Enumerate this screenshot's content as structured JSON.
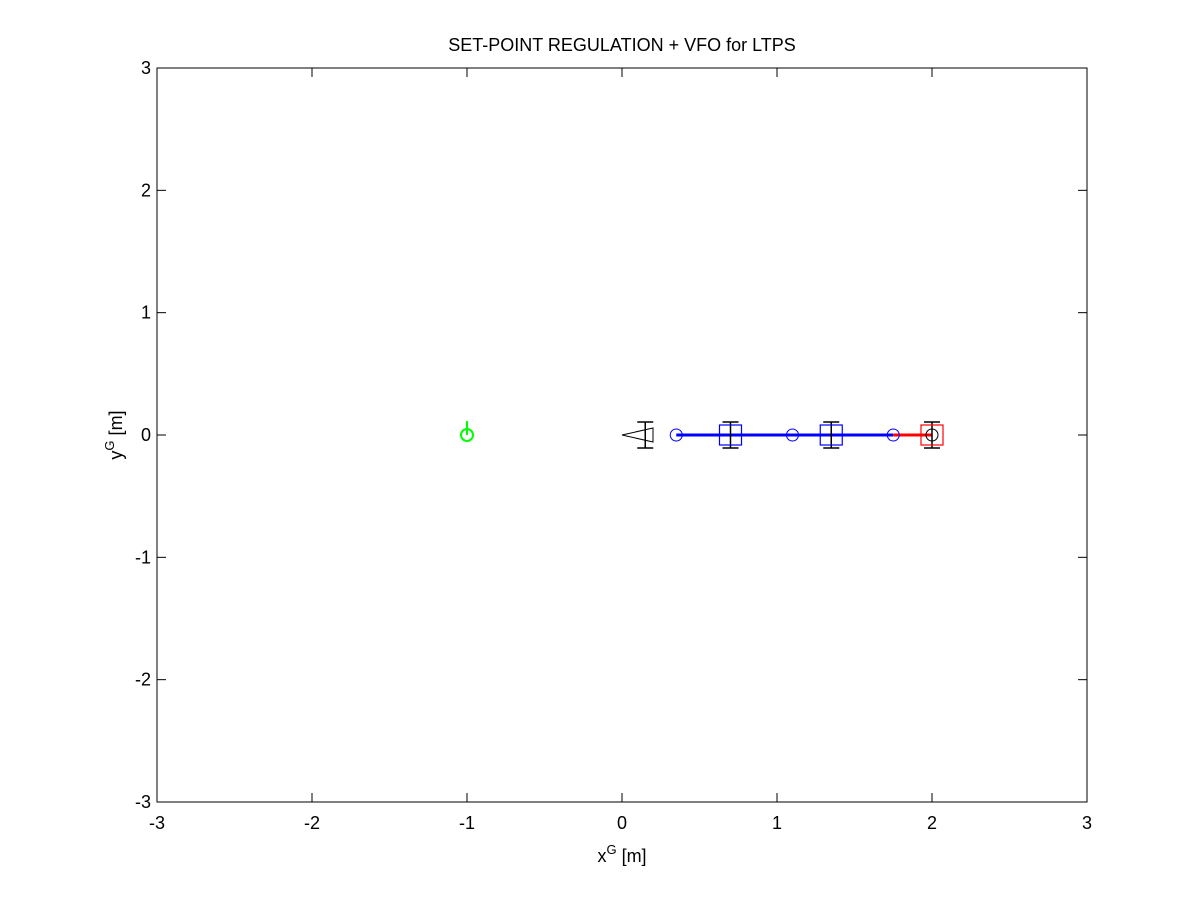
{
  "chart_data": {
    "type": "scatter",
    "title": "SET-POINT REGULATION + VFO for LTPS",
    "xlabel": {
      "text": "x",
      "superscript": "G",
      "suffix": "[m]"
    },
    "ylabel": {
      "text": "y",
      "superscript": "G",
      "suffix": "[m]"
    },
    "xlim": [
      -3,
      3
    ],
    "ylim": [
      -3,
      3
    ],
    "xticks": [
      -3,
      -2,
      -1,
      0,
      1,
      2,
      3
    ],
    "yticks": [
      -3,
      -2,
      -1,
      0,
      1,
      2,
      3
    ],
    "series": [
      {
        "color": "#0000ff",
        "marker": "none",
        "line": true,
        "x": [
          0.35,
          1.75
        ],
        "y": [
          0,
          0
        ]
      },
      {
        "color": "#ff0000",
        "marker": "none",
        "line": true,
        "x": [
          1.75,
          2.0
        ],
        "y": [
          0,
          0
        ]
      },
      {
        "color": "#000000",
        "marker": "axle",
        "x": [
          0.15,
          0.7,
          1.35,
          2.0
        ],
        "y": [
          0,
          0,
          0,
          0
        ]
      },
      {
        "color": "#000000",
        "marker": "tractor",
        "x": [
          0.2
        ],
        "y": [
          0
        ]
      },
      {
        "color": "#0000ff",
        "marker": "circle",
        "x": [
          0.35,
          1.1,
          1.75
        ],
        "y": [
          0,
          0,
          0
        ]
      },
      {
        "color": "#000000",
        "marker": "circle",
        "x": [
          2.0
        ],
        "y": [
          0
        ]
      },
      {
        "color": "#0000ff",
        "marker": "square",
        "x": [
          0.7,
          1.35
        ],
        "y": [
          0,
          0
        ]
      },
      {
        "color": "#ff0000",
        "marker": "square",
        "x": [
          2.0
        ],
        "y": [
          0
        ]
      },
      {
        "color": "#00ff00",
        "marker": "circle-heading",
        "x": [
          -1
        ],
        "y": [
          0
        ]
      }
    ]
  }
}
